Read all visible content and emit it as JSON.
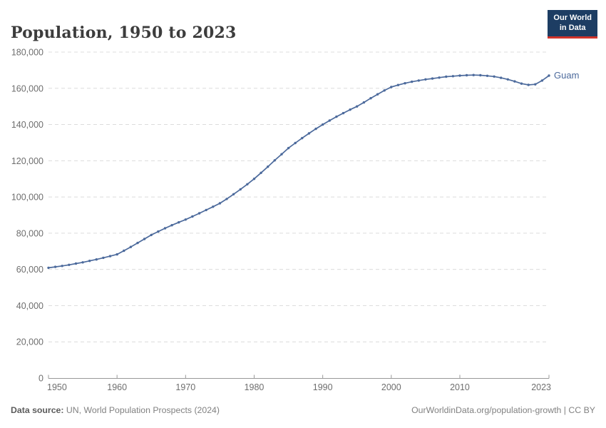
{
  "header": {
    "title": "Population, 1950 to 2023",
    "logo": {
      "line1": "Our World",
      "line2": "in Data"
    }
  },
  "footer": {
    "source_label": "Data source:",
    "source_text": "UN, World Population Prospects (2024)",
    "attribution": "OurWorldinData.org/population-growth | CC BY"
  },
  "chart_data": {
    "type": "line",
    "title": "Population, 1950 to 2023",
    "xlabel": "",
    "ylabel": "",
    "xlim": [
      1950,
      2023
    ],
    "ylim": [
      0,
      180000
    ],
    "x_ticks": [
      1950,
      1960,
      1970,
      1980,
      1990,
      2000,
      2010,
      2023
    ],
    "y_ticks": [
      0,
      20000,
      40000,
      60000,
      80000,
      100000,
      120000,
      140000,
      160000,
      180000
    ],
    "grid": "horizontal-dashed",
    "legend_position": "end-of-line-label",
    "markers": true,
    "series": [
      {
        "name": "Guam",
        "color": "#4C6A9C",
        "years": [
          1950,
          1951,
          1952,
          1953,
          1954,
          1955,
          1956,
          1957,
          1958,
          1959,
          1960,
          1961,
          1962,
          1963,
          1964,
          1965,
          1966,
          1967,
          1968,
          1969,
          1970,
          1971,
          1972,
          1973,
          1974,
          1975,
          1976,
          1977,
          1978,
          1979,
          1980,
          1981,
          1982,
          1983,
          1984,
          1985,
          1986,
          1987,
          1988,
          1989,
          1990,
          1991,
          1992,
          1993,
          1994,
          1995,
          1996,
          1997,
          1998,
          1999,
          2000,
          2001,
          2002,
          2003,
          2004,
          2005,
          2006,
          2007,
          2008,
          2009,
          2010,
          2011,
          2012,
          2013,
          2014,
          2015,
          2016,
          2017,
          2018,
          2019,
          2020,
          2021,
          2022,
          2023
        ],
        "values": [
          60900,
          61400,
          61900,
          62500,
          63200,
          63900,
          64700,
          65500,
          66400,
          67300,
          68300,
          70300,
          72400,
          74600,
          76800,
          79000,
          80900,
          82700,
          84400,
          86000,
          87500,
          89200,
          91000,
          92800,
          94600,
          96500,
          98900,
          101500,
          104200,
          107000,
          110000,
          113300,
          116700,
          120200,
          123600,
          127000,
          129800,
          132500,
          135100,
          137600,
          140000,
          142200,
          144300,
          146300,
          148200,
          150000,
          152200,
          154500,
          156700,
          158800,
          160700,
          161800,
          162800,
          163600,
          164300,
          164900,
          165400,
          165900,
          166400,
          166700,
          167000,
          167200,
          167300,
          167200,
          166900,
          166500,
          165800,
          164900,
          163800,
          162600,
          161900,
          162200,
          164300,
          167000
        ]
      }
    ],
    "colors": {
      "line": "#4C6A9C",
      "gridline": "#dcdcdc",
      "axis": "#999999",
      "tick_label": "#6e6e6e",
      "entity_label": "#4C6A9C"
    }
  }
}
